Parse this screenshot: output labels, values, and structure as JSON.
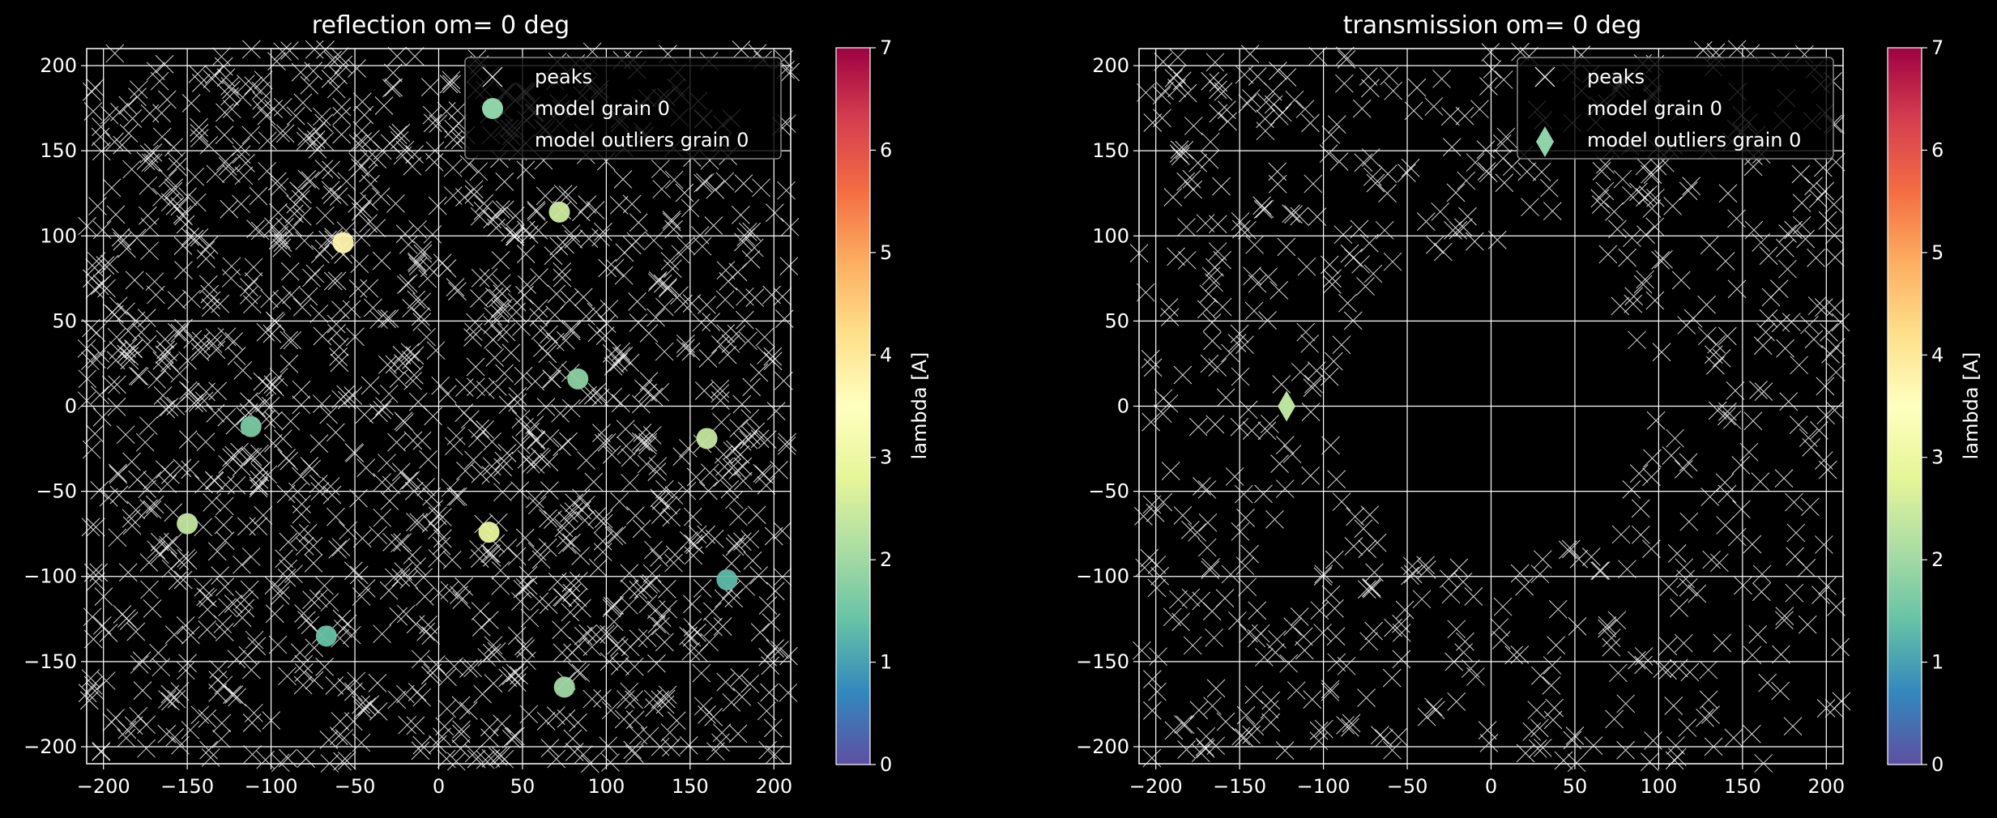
{
  "chart_data": [
    {
      "type": "scatter",
      "title": "reflection   om=  0 deg",
      "xlim": [
        -210,
        210
      ],
      "ylim": [
        -210,
        210
      ],
      "xticks": [
        -200,
        -150,
        -100,
        -50,
        0,
        50,
        100,
        150,
        200
      ],
      "yticks": [
        -200,
        -150,
        -100,
        -50,
        0,
        50,
        100,
        150,
        200
      ],
      "grid": true,
      "legend_position": "upper right",
      "legend": [
        "peaks",
        "model grain 0",
        "model outliers grain 0"
      ],
      "peaks_density": "dense",
      "model_grain": {
        "x": [
          -57,
          72,
          83,
          -112,
          160,
          -150,
          30,
          172,
          -67,
          75
        ],
        "y": [
          96,
          114,
          16,
          -12,
          -19,
          -69,
          -74,
          -102,
          -135,
          -165
        ],
        "lambda": [
          3.7,
          2.5,
          1.8,
          1.6,
          2.4,
          2.4,
          2.9,
          1.3,
          1.4,
          2.0
        ]
      },
      "model_outliers": {
        "x": [],
        "y": [],
        "lambda": []
      },
      "colorbar": {
        "label": "lambda [A]",
        "range": [
          0,
          7
        ],
        "ticks": [
          0,
          1,
          2,
          3,
          4,
          5,
          6,
          7
        ]
      }
    },
    {
      "type": "scatter",
      "title": "transmission om=  0 deg",
      "xlim": [
        -210,
        210
      ],
      "ylim": [
        -210,
        210
      ],
      "xticks": [
        -200,
        -150,
        -100,
        -50,
        0,
        50,
        100,
        150,
        200
      ],
      "yticks": [
        -200,
        -150,
        -100,
        -50,
        0,
        50,
        100,
        150,
        200
      ],
      "grid": true,
      "legend_position": "upper right",
      "legend": [
        "peaks",
        "model grain 0",
        "model outliers grain 0"
      ],
      "peaks_density": "ring",
      "model_grain": {
        "x": [],
        "y": [],
        "lambda": []
      },
      "model_outliers": {
        "x": [
          -122
        ],
        "y": [
          0
        ],
        "lambda": [
          2.3
        ]
      },
      "colorbar": {
        "label": "lambda [A]",
        "range": [
          0,
          7
        ],
        "ticks": [
          0,
          1,
          2,
          3,
          4,
          5,
          6,
          7
        ]
      }
    }
  ]
}
